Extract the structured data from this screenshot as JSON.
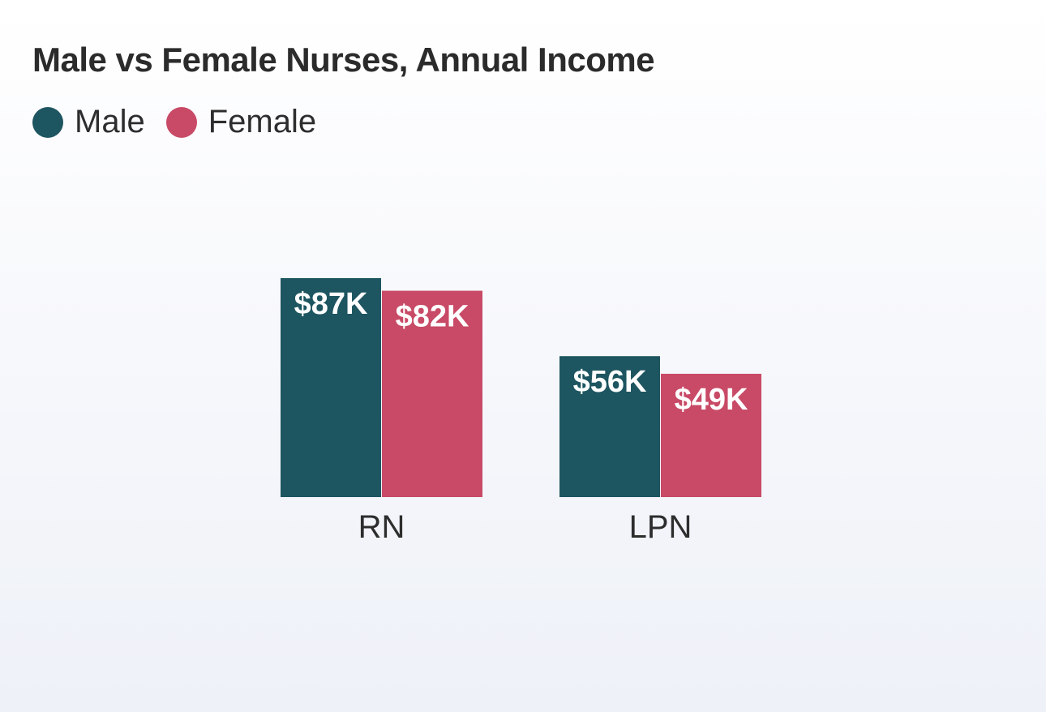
{
  "chart_data": {
    "type": "bar",
    "title": "Male vs Female Nurses, Annual Income",
    "categories": [
      "RN",
      "LPN"
    ],
    "series": [
      {
        "name": "Male",
        "color": "#1d5560",
        "values": [
          87,
          56
        ],
        "labels": [
          "$87K",
          "$56K"
        ]
      },
      {
        "name": "Female",
        "color": "#c84a66",
        "values": [
          82,
          49
        ],
        "labels": [
          "$82K",
          "$49K"
        ]
      }
    ],
    "value_unit": "$K",
    "legend_position": "top-left",
    "grid": false,
    "ylim": [
      0,
      87
    ]
  }
}
